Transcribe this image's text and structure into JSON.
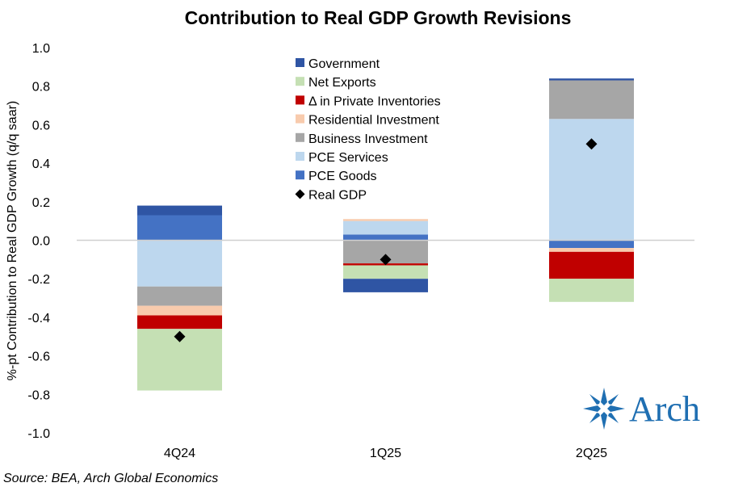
{
  "chart_data": {
    "type": "bar",
    "stacked": true,
    "title": "Contribution to Real GDP Growth Revisions",
    "ylabel": "%-pt Contribution to Real GDP Growth (q/q saar)",
    "xlabel": "",
    "categories": [
      "4Q24",
      "1Q25",
      "2Q25"
    ],
    "ylim": [
      -1.0,
      1.0
    ],
    "yticks": [
      1.0,
      0.8,
      0.6,
      0.4,
      0.2,
      0.0,
      -0.2,
      -0.4,
      -0.6,
      -0.8,
      -1.0
    ],
    "ytick_labels": [
      "1.0",
      "0.8",
      "0.6",
      "0.4",
      "0.2",
      "0.0",
      "-0.2",
      "-0.4",
      "-0.6",
      "-0.8",
      "-1.0"
    ],
    "grid": false,
    "legend_position": "top-center",
    "series": [
      {
        "name": "Government",
        "color": "#2f55a4",
        "values": [
          0.05,
          -0.07,
          0.01
        ]
      },
      {
        "name": "Net Exports",
        "color": "#c5e0b4",
        "values": [
          -0.32,
          -0.07,
          -0.12
        ]
      },
      {
        "name": "Δ in Private Inventories",
        "color": "#c00000",
        "values": [
          -0.07,
          -0.01,
          -0.14
        ]
      },
      {
        "name": "Residential Investment",
        "color": "#f8cbad",
        "values": [
          -0.05,
          0.01,
          -0.02
        ]
      },
      {
        "name": "Business Investment",
        "color": "#a6a6a6",
        "values": [
          -0.1,
          -0.12,
          0.2
        ]
      },
      {
        "name": "PCE Services",
        "color": "#bdd7ee",
        "values": [
          -0.24,
          0.07,
          0.63
        ]
      },
      {
        "name": "PCE Goods",
        "color": "#4472c4",
        "values": [
          0.13,
          0.03,
          -0.04
        ]
      }
    ],
    "marker_series": {
      "name": "Real GDP",
      "marker": "diamond",
      "color": "#000000",
      "values": [
        -0.5,
        -0.1,
        0.5
      ]
    }
  },
  "source": "Source: BEA, Arch Global Economics",
  "logo": {
    "text": "Arch",
    "color": "#1f6fb2"
  }
}
